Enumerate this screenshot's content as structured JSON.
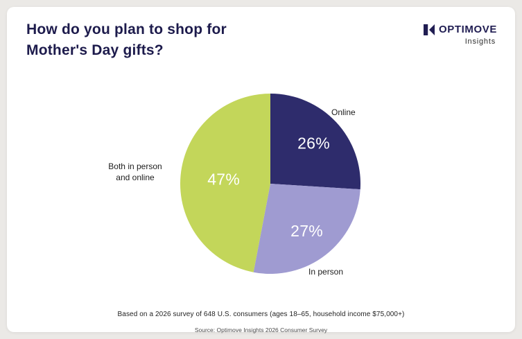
{
  "header": {
    "title_line1": "How do you plan to shop for",
    "title_line2": "Mother's Day gifts?"
  },
  "logo": {
    "brand": "OPTIMOVE",
    "subtitle": "Insights"
  },
  "chart_data": {
    "type": "pie",
    "title": "How do you plan to shop for Mother's Day gifts?",
    "start_angle_deg": 0,
    "direction": "clockwise",
    "legend_position": "outside-labels",
    "slices": [
      {
        "label": "Online",
        "value": 26,
        "display": "26%",
        "color": "#2e2c6c",
        "text_color": "#ffffff"
      },
      {
        "label": "In person",
        "value": 27,
        "display": "27%",
        "color": "#9f9bd1",
        "text_color": "#ffffff"
      },
      {
        "label": "Both in person and online",
        "value": 47,
        "display": "47%",
        "color": "#c3d65a",
        "text_color": "#ffffff"
      }
    ]
  },
  "footer": {
    "line1": "Based on a 2026 survey of 648 U.S. consumers (ages 18–65, household income $75,000+)",
    "line2": "Source: Optimove Insights 2026 Consumer Survey"
  },
  "colors": {
    "page_bg": "#ebe9e6",
    "card_bg": "#ffffff",
    "title": "#1d1b4c",
    "brand": "#201d52"
  }
}
